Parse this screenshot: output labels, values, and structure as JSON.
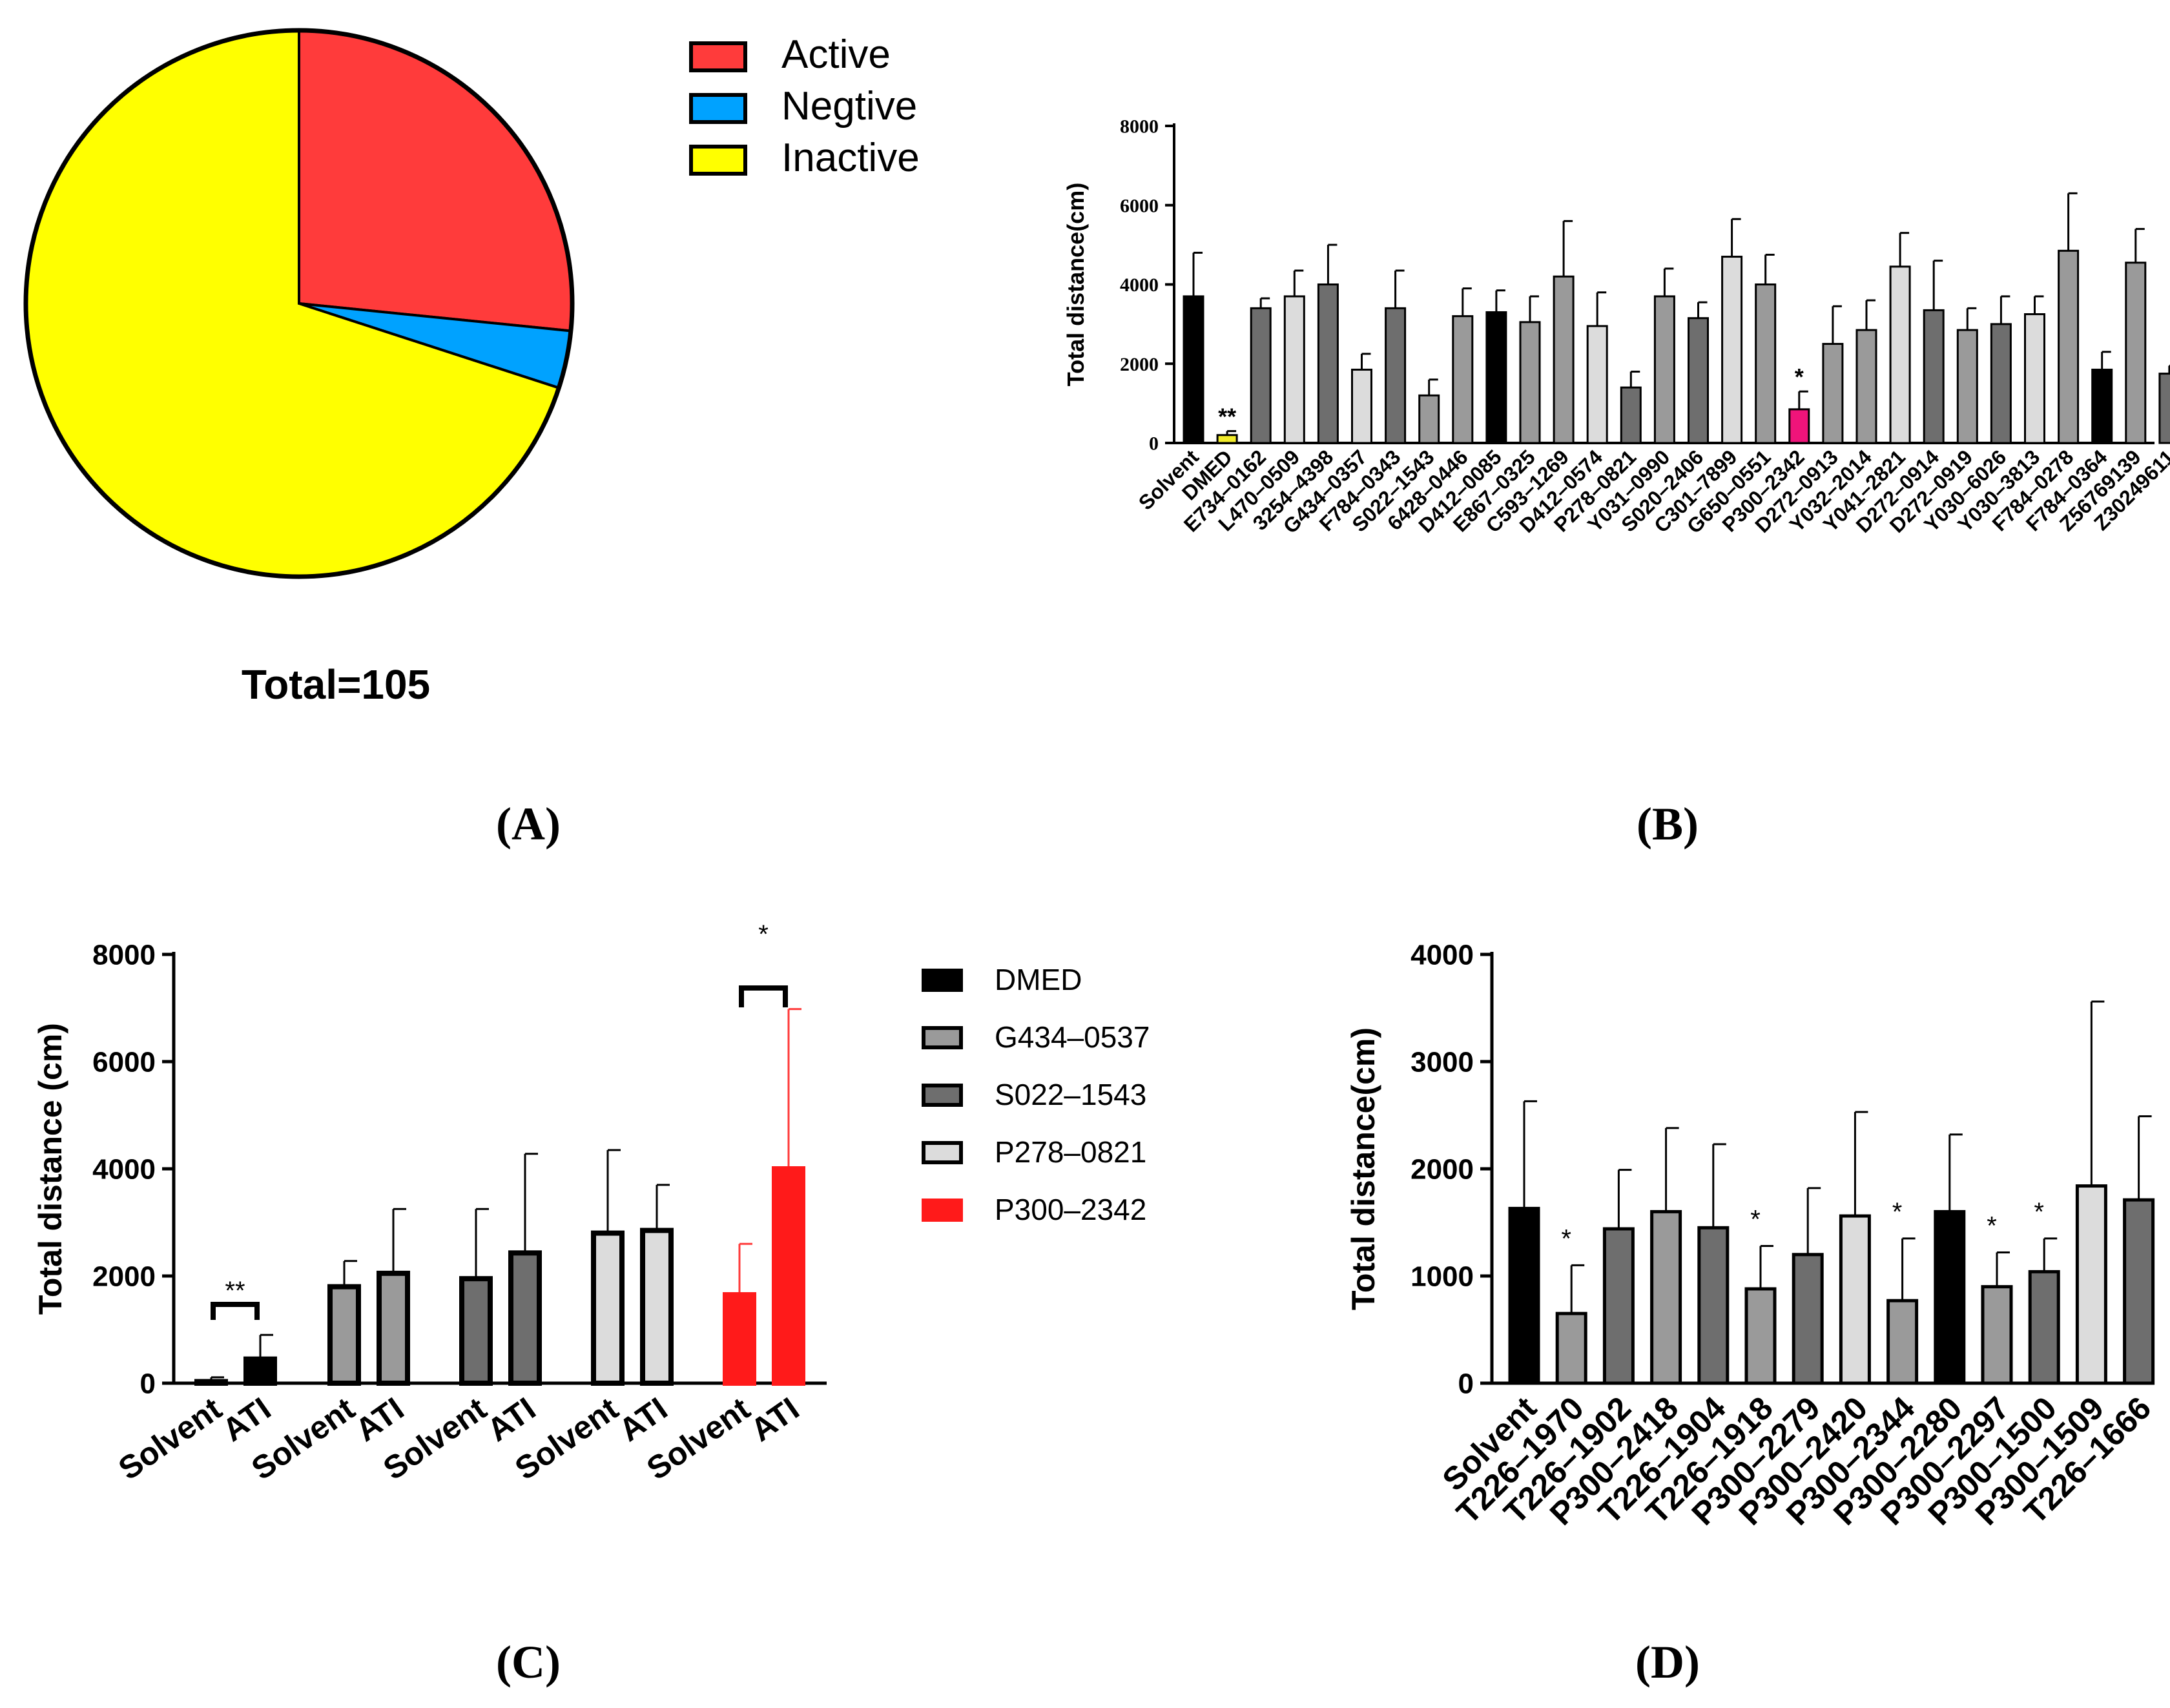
{
  "colors": {
    "active": "#FF3B3B",
    "negtive": "#00A2FF",
    "inactive": "#FFFF00",
    "black": "#000000",
    "gray_mid": "#9A9A9A",
    "gray_dark": "#6E6E6E",
    "gray_light": "#DCDCDC",
    "pink": "#F0147A",
    "yellow_bar": "#F2EC2B",
    "red_bar": "#FF1A1A"
  },
  "panel_labels": {
    "a": "(A)",
    "b": "(B)",
    "c": "(C)",
    "d": "(D)"
  },
  "chart_data": [
    {
      "id": "A",
      "type": "pie",
      "title": "",
      "total_label": "Total=105",
      "legend": [
        "Active",
        "Negtive",
        "Inactive"
      ],
      "legend_placement": "top-right",
      "slices": [
        {
          "label": "Active",
          "value": 26.6,
          "color": "#FF3B3B"
        },
        {
          "label": "Negtive",
          "value": 3.4,
          "color": "#00A2FF"
        },
        {
          "label": "Inactive",
          "value": 70.0,
          "color": "#FFFF00"
        }
      ]
    },
    {
      "id": "B",
      "type": "bar",
      "ylabel": "Total distance(cm)",
      "ylim": [
        0,
        8000
      ],
      "yticks": [
        "0",
        "2000",
        "4000",
        "6000",
        "8000"
      ],
      "categories": [
        "Solvent",
        "DMED",
        "E734–0162",
        "L470–0509",
        "3254–4398",
        "G434–0357",
        "F784–0343",
        "S022–1543",
        "6428–0446",
        "D412–0085",
        "E867–0325",
        "C593–1269",
        "D412–0574",
        "P278–0821",
        "Y031–0990",
        "S020–2406",
        "C301–7899",
        "G650–0551",
        "P300–2342",
        "D272–0913",
        "Y032–2014",
        "Y041–2821",
        "D272–0914",
        "D272–0919",
        "Y030–6026",
        "Y030–3813",
        "F784–0278",
        "F784–0364",
        "Z56769139",
        "Z30249611"
      ],
      "values": [
        3700,
        200,
        3400,
        3700,
        4000,
        1850,
        3400,
        1200,
        3200,
        3300,
        3050,
        4200,
        2950,
        1400,
        3700,
        3150,
        4700,
        4000,
        850,
        2500,
        2850,
        4450,
        3350,
        2850,
        3000,
        3250,
        4850,
        1850,
        4550,
        1750
      ],
      "errors": [
        1100,
        100,
        250,
        650,
        1000,
        400,
        950,
        400,
        700,
        550,
        650,
        1400,
        850,
        400,
        700,
        400,
        950,
        750,
        450,
        950,
        750,
        850,
        1250,
        550,
        700,
        450,
        1450,
        450,
        850,
        200
      ],
      "colors": [
        "black",
        "yellow_bar",
        "gray_dark",
        "gray_light",
        "gray_dark",
        "gray_light",
        "gray_dark",
        "gray_mid",
        "gray_mid",
        "black",
        "gray_mid",
        "gray_mid",
        "gray_light",
        "gray_dark",
        "gray_mid",
        "gray_dark",
        "gray_light",
        "gray_mid",
        "pink",
        "gray_mid",
        "gray_mid",
        "gray_light",
        "gray_dark",
        "gray_mid",
        "gray_dark",
        "gray_light",
        "gray_mid",
        "black",
        "gray_mid",
        "gray_dark"
      ],
      "annotations": [
        {
          "index": 1,
          "text": "**"
        },
        {
          "index": 18,
          "text": "*"
        }
      ]
    },
    {
      "id": "C",
      "type": "bar",
      "ylabel": "Total distance (cm)",
      "ylim": [
        0,
        8000
      ],
      "yticks": [
        "0",
        "2000",
        "4000",
        "6000",
        "8000"
      ],
      "categories": [
        "Solvent",
        "ATI",
        "Solvent",
        "ATI",
        "Solvent",
        "ATI",
        "Solvent",
        "ATI",
        "Solvent",
        "ATI"
      ],
      "groups": [
        "DMED",
        "DMED",
        "G434–0537",
        "G434–0537",
        "S022–1543",
        "S022–1543",
        "P278–0821",
        "P278–0821",
        "P300–2342",
        "P300–2342"
      ],
      "values": [
        30,
        450,
        1800,
        2050,
        1950,
        2430,
        2800,
        2850,
        1650,
        4000
      ],
      "errors": [
        80,
        450,
        480,
        1200,
        1300,
        1850,
        1550,
        850,
        950,
        2980
      ],
      "legend": [
        {
          "label": "DMED",
          "color": "black"
        },
        {
          "label": "G434–0537",
          "color": "gray_mid"
        },
        {
          "label": "S022–1543",
          "color": "gray_dark"
        },
        {
          "label": "P278–0821",
          "color": "gray_light"
        },
        {
          "label": "P300–2342",
          "color": "red_bar"
        }
      ],
      "legend_placement": "right",
      "annotations": [
        {
          "from": 0,
          "to": 1,
          "text": "**"
        },
        {
          "from": 8,
          "to": 9,
          "text": "*"
        }
      ]
    },
    {
      "id": "D",
      "type": "bar",
      "ylabel": "Total distance(cm)",
      "ylim": [
        0,
        4000
      ],
      "yticks": [
        "0",
        "1000",
        "2000",
        "3000",
        "4000"
      ],
      "categories": [
        "Solvent",
        "T226–1970",
        "T226–1902",
        "P300–2418",
        "T226–1904",
        "T226–1918",
        "P300–2279",
        "P300–2420",
        "P300–2344",
        "P300–2280",
        "P300–2297",
        "P300–1500",
        "P300–1509",
        "T226–1666"
      ],
      "values": [
        1630,
        650,
        1440,
        1600,
        1450,
        880,
        1200,
        1560,
        770,
        1600,
        900,
        1040,
        1840,
        1710
      ],
      "errors": [
        1000,
        450,
        550,
        780,
        780,
        400,
        620,
        970,
        580,
        720,
        320,
        310,
        1720,
        780
      ],
      "colors": [
        "black",
        "gray_mid",
        "gray_dark",
        "gray_mid",
        "gray_dark",
        "gray_mid",
        "gray_dark",
        "gray_light",
        "gray_mid",
        "black",
        "gray_mid",
        "gray_dark",
        "gray_light",
        "gray_dark"
      ],
      "annotations": [
        {
          "index": 1,
          "text": "*"
        },
        {
          "index": 5,
          "text": "*"
        },
        {
          "index": 8,
          "text": "*"
        },
        {
          "index": 10,
          "text": "*"
        },
        {
          "index": 11,
          "text": "*"
        }
      ]
    }
  ]
}
